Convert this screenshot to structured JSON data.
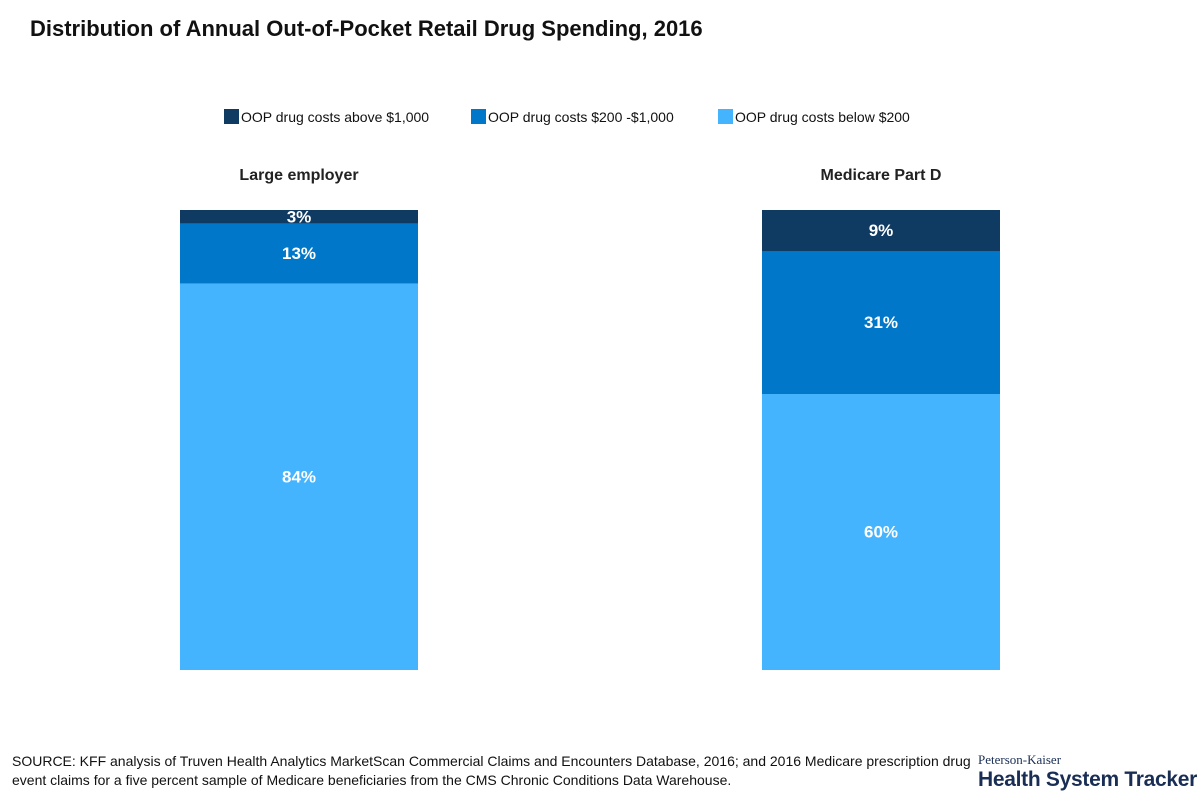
{
  "title": "Distribution of Annual Out-of-Pocket Retail Drug Spending, 2016",
  "legend": [
    {
      "label": "OOP drug costs above $1,000",
      "color": "#0f3a61"
    },
    {
      "label": "OOP drug costs $200 -$1,000",
      "color": "#0077c8"
    },
    {
      "label": "OOP drug costs below $200",
      "color": "#44b4ff"
    }
  ],
  "chart_data": {
    "type": "bar",
    "stacked": true,
    "normalized_percent": true,
    "categories": [
      "Large employer",
      "Medicare Part D"
    ],
    "series": [
      {
        "name": "OOP drug costs above $1,000",
        "color": "#0f3a61",
        "values": [
          3,
          9
        ],
        "labels": [
          "3%",
          "9%"
        ]
      },
      {
        "name": "OOP drug costs $200 -$1,000",
        "color": "#0077c8",
        "values": [
          13,
          31
        ],
        "labels": [
          "13%",
          "31%"
        ]
      },
      {
        "name": "OOP drug costs below $200",
        "color": "#44b4ff",
        "values": [
          84,
          60
        ],
        "labels": [
          "84%",
          "60%"
        ]
      }
    ],
    "ylim": [
      0,
      100
    ],
    "grid": false,
    "legend_position": "top-center"
  },
  "source": "SOURCE: KFF analysis of Truven Health Analytics MarketScan Commercial Claims and Encounters Database, 2016; and 2016 Medicare prescription drug event claims for a five percent sample of Medicare beneficiaries from the CMS Chronic Conditions Data Warehouse.",
  "logo": {
    "top": "Peterson-Kaiser",
    "main": "Health System Tracker"
  }
}
